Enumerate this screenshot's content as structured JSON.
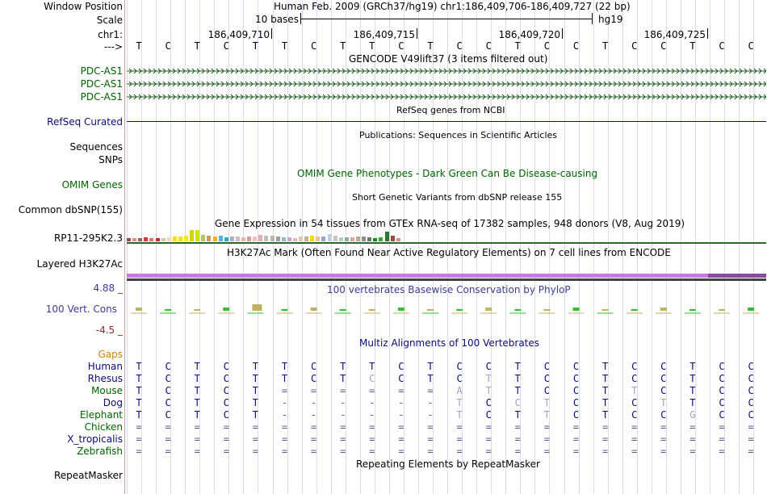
{
  "header": {
    "window_position_label": "Window Position",
    "window_position_text": "Human Feb. 2009 (GRCh37/hg19)   chr1:186,409,706-186,409,727 (22 bp)",
    "scale_label": "Scale",
    "scale_text": "10 bases",
    "scale_db": "hg19",
    "chrom_label": "chr1:",
    "strand_label": "--->",
    "coords": [
      "186,409,710",
      "186,409,715",
      "186,409,720",
      "186,409,725"
    ],
    "bases": [
      "T",
      "C",
      "T",
      "C",
      "T",
      "T",
      "C",
      "T",
      "T",
      "C",
      "T",
      "C",
      "C",
      "T",
      "C",
      "C",
      "T",
      "C",
      "C",
      "T",
      "C",
      "C"
    ]
  },
  "tracks": {
    "gencode": {
      "title": "GENCODE V49lift37 (3 items filtered out)",
      "items": [
        "PDC-AS1",
        "PDC-AS1",
        "PDC-AS1"
      ]
    },
    "refseq": {
      "title": "RefSeq genes from NCBI",
      "label": "RefSeq Curated"
    },
    "publications": {
      "title": "Publications: Sequences in Scientific Articles",
      "labels": [
        "Sequences",
        "SNPs"
      ]
    },
    "omim": {
      "title": "OMIM Gene Phenotypes - Dark Green Can Be Disease-causing",
      "label": "OMIM Genes"
    },
    "dbsnp": {
      "title": "Short Genetic Variants from dbSNP release 155",
      "label": "Common dbSNP(155)"
    },
    "gtex": {
      "title": "Gene Expression in 54 tissues from GTEx RNA-seq of 17382 samples, 948 donors (V8, Aug 2019)",
      "label": "RP11-295K2.3"
    },
    "h3k27ac": {
      "title": "H3K27Ac Mark (Often Found Near Active Regulatory Elements) on 7 cell lines from ENCODE",
      "label": "Layered H3K27Ac"
    },
    "phylop": {
      "title": "100 vertebrates Basewise Conservation by PhyloP",
      "label": "100 Vert. Cons",
      "max": "4.88 _",
      "min": "-4.5 _"
    },
    "multiz": {
      "title": "Multiz Alignments of 100 Vertebrates",
      "gaps_label": "Gaps",
      "rows": [
        {
          "species": "Human",
          "bases": [
            "T",
            "C",
            "T",
            "C",
            "T",
            "T",
            "C",
            "T",
            "T",
            "C",
            "T",
            "C",
            "C",
            "T",
            "C",
            "C",
            "T",
            "C",
            "C",
            "T",
            "C",
            "C"
          ]
        },
        {
          "species": "Rhesus",
          "bases": [
            "T",
            "C",
            "T",
            "C",
            "T",
            "T",
            "C",
            "T",
            "C",
            "C",
            "T",
            "C",
            "T",
            "T",
            "C",
            "C",
            "T",
            "C",
            "C",
            "T",
            "C",
            "C"
          ]
        },
        {
          "species": "Mouse",
          "bases": [
            "T",
            "C",
            "T",
            "C",
            "T",
            "=",
            "=",
            "=",
            "=",
            "=",
            "=",
            "A",
            "T",
            "T",
            "C",
            "C",
            "T",
            "T",
            "C",
            "T",
            "C",
            "C"
          ]
        },
        {
          "species": "Dog",
          "bases": [
            "T",
            "C",
            "T",
            "C",
            "T",
            "-",
            "-",
            "-",
            "-",
            "-",
            "-",
            "T",
            "C",
            "C",
            "T",
            "C",
            "T",
            "C",
            "T",
            "T",
            "C",
            "C"
          ]
        },
        {
          "species": "Elephant",
          "bases": [
            "T",
            "C",
            "T",
            "C",
            "T",
            "-",
            "-",
            "-",
            "-",
            "-",
            "-",
            "T",
            "C",
            "T",
            "T",
            "C",
            "T",
            "C",
            "C",
            "G",
            "C",
            "C"
          ]
        },
        {
          "species": "Chicken",
          "bases": [
            "=",
            "=",
            "=",
            "=",
            "=",
            "=",
            "=",
            "=",
            "=",
            "=",
            "=",
            "=",
            "=",
            "=",
            "=",
            "=",
            "=",
            "=",
            "=",
            "=",
            "=",
            "="
          ]
        },
        {
          "species": "X_tropicalis",
          "bases": [
            "=",
            "=",
            "=",
            "=",
            "=",
            "=",
            "=",
            "=",
            "=",
            "=",
            "=",
            "=",
            "=",
            "=",
            "=",
            "=",
            "=",
            "=",
            "=",
            "=",
            "=",
            "="
          ]
        },
        {
          "species": "Zebrafish",
          "bases": [
            "=",
            "=",
            "=",
            "=",
            "=",
            "=",
            "=",
            "=",
            "=",
            "=",
            "=",
            "=",
            "=",
            "=",
            "=",
            "=",
            "=",
            "=",
            "=",
            "=",
            "=",
            "="
          ]
        }
      ]
    },
    "repeatmasker": {
      "title": "Repeating Elements by RepeatMasker",
      "label": "RepeatMasker"
    }
  },
  "colors": {
    "green_label": "#006400",
    "blue_label": "#0a0a7a",
    "phylop_blue": "#3c3c96",
    "gaps_orange": "#d98200",
    "h3k27ac": "#c878e8",
    "gtex": [
      "#9e4a44",
      "#e08d8d",
      "#ab5a4c",
      "#d13b3b",
      "#f06c6c",
      "#c12b2b",
      "#d9c8a0",
      "#e8ddb5",
      "#ffdd00",
      "#f0e400",
      "#ffe800",
      "#d4d400",
      "#c9e600",
      "#b0c860",
      "#cca050",
      "#f0b020",
      "#50b0e0",
      "#20b0d0",
      "#b0b0b0",
      "#c8c0c0",
      "#f0b0b0",
      "#d0a0a0",
      "#f0c0c0",
      "#e0b0b0",
      "#c0c0c0",
      "#b8b8b8",
      "#a0a0a0",
      "#98b8d0",
      "#c8a8c8",
      "#d8b8c8",
      "#e0c8a8",
      "#c0b090",
      "#ffd700",
      "#f0c0a0",
      "#a0a0d0",
      "#c0d0e0",
      "#d0c0c0",
      "#b0d0c0",
      "#90b0a0",
      "#e0a0a0",
      "#b0b090",
      "#909090",
      "#707070",
      "#009900",
      "#40a040",
      "#2a7a2a"
    ]
  }
}
